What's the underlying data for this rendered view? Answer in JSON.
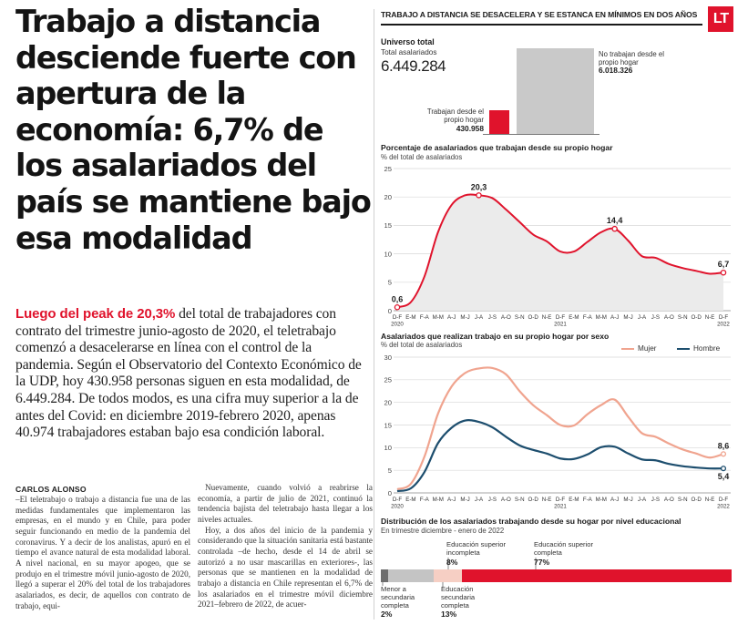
{
  "article": {
    "headline": "Trabajo a distancia desciende fuerte con apertura de la economía: 6,7% de los asalariados del país se mantiene bajo esa modalidad",
    "lead_highlight": "Luego del peak de 20,3%",
    "lead_rest": " del total de trabajadores con contrato del trimestre junio-agosto de 2020, el teletrabajo comenzó a desacelerarse en línea con el control de la pandemia. Según el Observatorio del Contexto Económico de la UDP, hoy 430.958 personas siguen en esta modalidad, de 6.449.284. De todos modos, es una cifra muy superior a la de antes del Covid: en diciembre 2019-febrero 2020, apenas 40.974 trabajadores estaban bajo esa condición laboral.",
    "byline": "CARLOS ALONSO",
    "body_col1": "–El teletrabajo o trabajo a distancia fue una de las medidas fundamentales que implementaron las empresas, en el mundo y en Chile, para poder seguir funcionando en medio de la pandemia del coronavirus. Y a decir de los analistas, apuró en el tiempo el avance natural de esta modalidad laboral. A nivel nacional, en su mayor apogeo, que se produjo en el trimestre móvil junio-agosto de 2020, llegó a superar el 20% del total de los trabajadores asalariados, es decir, de aquellos con contrato de trabajo, equi-",
    "body_col2_p1": "Nuevamente, cuando volvió a reabrirse la economía, a partir de julio de 2021, continuó la tendencia bajista del teletrabajo hasta llegar a los niveles actuales.",
    "body_col2_p2": "Hoy, a dos años del inicio de la pandemia y considerando que la situación sanitaria está bastante controlada –de hecho, desde el 14 de abril se autorizó a no usar mascarillas en exteriores-, las personas que se mantienen en la modalidad de trabajo a distancia en Chile representan el 6,7% de los asalariados en el trimestre móvil diciembre 2021–febrero de 2022, de acuer-"
  },
  "infographic": {
    "title": "TRABAJO A DISTANCIA SE DESACELERA Y SE ESTANCA EN MÍNIMOS EN DOS AÑOS",
    "logo": "LT",
    "universe": {
      "title": "Universo total",
      "sub": "Total asalariados",
      "total": "6.449.284",
      "no_home_label": "No trabajan desde el propio hogar",
      "no_home_value": "6.018.326",
      "home_label": "Trabajan desde el propio hogar",
      "home_value": "430.958"
    },
    "colors": {
      "red": "#e0132c",
      "mujer": "#f0a48f",
      "hombre": "#1d4e6e",
      "grid": "#d8d8d8",
      "fill": "#ebebeb"
    }
  },
  "chart_data": [
    {
      "type": "area",
      "title": "Porcentaje de asalariados que trabajan desde su propio hogar",
      "ylabel": "% del total de asalariados",
      "ylim": [
        0,
        25
      ],
      "yticks": [
        0,
        5,
        10,
        15,
        20,
        25
      ],
      "x": [
        "D-F",
        "E-M",
        "F-A",
        "M-M",
        "A-J",
        "M-J",
        "J-A",
        "J-S",
        "A-O",
        "S-N",
        "O-D",
        "N-E",
        "D-F",
        "E-M",
        "F-A",
        "M-M",
        "A-J",
        "M-J",
        "J-A",
        "J-S",
        "A-O",
        "S-N",
        "O-D",
        "N-E",
        "D-F"
      ],
      "year_labels": {
        "0": "2020",
        "12": "2021",
        "24": "2022"
      },
      "values": [
        0.6,
        1.5,
        6,
        13.8,
        18.6,
        20.3,
        20.3,
        19.8,
        17.8,
        15.6,
        13.4,
        12.2,
        10.4,
        10.4,
        12.1,
        13.8,
        14.4,
        12.3,
        9.6,
        9.3,
        8.2,
        7.5,
        7.0,
        6.5,
        6.7
      ],
      "annotations": [
        {
          "index": 0,
          "label": "0,6"
        },
        {
          "index": 6,
          "label": "20,3"
        },
        {
          "index": 16,
          "label": "14,4"
        },
        {
          "index": 24,
          "label": "6,7"
        }
      ]
    },
    {
      "type": "line",
      "title": "Asalariados que realizan trabajo en su propio hogar por sexo",
      "ylabel": "% del total de asalariados",
      "ylim": [
        0,
        30
      ],
      "yticks": [
        0,
        5,
        10,
        15,
        20,
        25,
        30
      ],
      "x": [
        "D-F",
        "E-M",
        "F-A",
        "M-M",
        "A-J",
        "M-J",
        "J-A",
        "J-S",
        "A-O",
        "S-N",
        "O-D",
        "N-E",
        "D-F",
        "E-M",
        "F-A",
        "M-M",
        "A-J",
        "M-J",
        "J-A",
        "J-S",
        "A-O",
        "S-N",
        "O-D",
        "N-E",
        "D-F"
      ],
      "year_labels": {
        "0": "2020",
        "12": "2021",
        "24": "2022"
      },
      "series": [
        {
          "name": "Mujer",
          "values": [
            0.8,
            2.0,
            8,
            17.5,
            23.5,
            26.5,
            27.5,
            27.6,
            26.2,
            22.5,
            19.4,
            17.2,
            15.0,
            14.9,
            17.4,
            19.4,
            20.6,
            16.8,
            13.2,
            12.4,
            10.9,
            9.6,
            8.7,
            7.8,
            8.6
          ]
        },
        {
          "name": "Hombre",
          "values": [
            0.4,
            1.0,
            4.6,
            11.0,
            14.4,
            16.0,
            15.7,
            14.5,
            12.4,
            10.5,
            9.5,
            8.7,
            7.6,
            7.5,
            8.5,
            10.1,
            10.2,
            8.7,
            7.4,
            7.2,
            6.4,
            5.9,
            5.6,
            5.4,
            5.4
          ]
        }
      ],
      "annotations": [
        {
          "series": 0,
          "index": 24,
          "label": "8,6"
        },
        {
          "series": 1,
          "index": 24,
          "label": "5,4"
        }
      ]
    },
    {
      "type": "bar",
      "stacked": true,
      "title": "Distribución de los asalariados trabajando desde su hogar por nivel educacional",
      "subtitle": "En trimestre diciembre - enero de 2022",
      "categories": [
        "Menor a secundaria completa",
        "Educación secundaria completa",
        "Educación superior incompleta",
        "Educación superior completa"
      ],
      "values": [
        2,
        13,
        8,
        77
      ],
      "labels": [
        "2%",
        "13%",
        "8%",
        "77%"
      ],
      "colors": [
        "#6d6d6d",
        "#c4c4c4",
        "#f6cfc4",
        "#e0132c"
      ]
    }
  ]
}
